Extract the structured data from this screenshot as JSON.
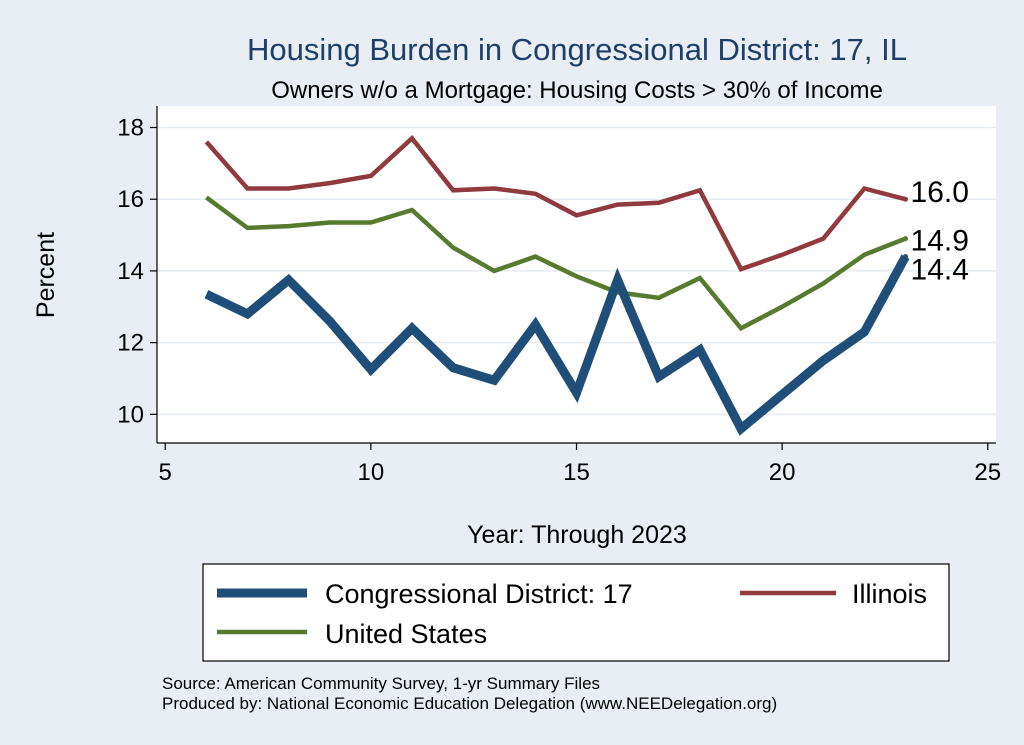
{
  "chart_data": {
    "type": "line",
    "title": "Housing Burden in Congressional District:  17, IL",
    "subtitle": "Owners w/o a Mortgage: Housing Costs > 30% of Income",
    "xlabel": "Year: Through 2023",
    "ylabel": "Percent",
    "xlim": [
      4.8,
      25.2
    ],
    "ylim": [
      9.2,
      18.6
    ],
    "xticks": [
      5,
      10,
      15,
      20,
      25
    ],
    "yticks": [
      10,
      12,
      14,
      16,
      18
    ],
    "grid": true,
    "legend_position": "bottom",
    "x": [
      6,
      7,
      8,
      9,
      10,
      11,
      12,
      13,
      14,
      15,
      16,
      17,
      18,
      19,
      20,
      21,
      22,
      23
    ],
    "series": [
      {
        "name": "Congressional District:  17",
        "color": "#1f4e79",
        "values": [
          13.35,
          12.8,
          13.75,
          12.6,
          11.25,
          12.4,
          11.3,
          10.95,
          12.5,
          10.6,
          13.75,
          11.05,
          11.8,
          9.6,
          10.55,
          11.5,
          12.3,
          14.4
        ],
        "end_label": "14.4"
      },
      {
        "name": "Illinois",
        "color": "#903a3f",
        "values": [
          17.6,
          16.3,
          16.3,
          16.45,
          16.65,
          17.7,
          16.25,
          16.3,
          16.15,
          15.55,
          15.85,
          15.9,
          16.25,
          14.05,
          14.45,
          14.9,
          16.3,
          16.0
        ],
        "end_label": "16.0"
      },
      {
        "name": "United States",
        "color": "#577a2f",
        "values": [
          16.05,
          15.2,
          15.25,
          15.35,
          15.35,
          15.7,
          14.65,
          14.0,
          14.4,
          13.85,
          13.4,
          13.25,
          13.8,
          12.4,
          13.0,
          13.65,
          14.45,
          14.9
        ],
        "end_label": "14.9"
      }
    ],
    "notes": [
      "Source: American Community Survey, 1-yr Summary Files",
      "Produced by: National Economic Education Delegation (www.NEEDelegation.org)"
    ]
  }
}
